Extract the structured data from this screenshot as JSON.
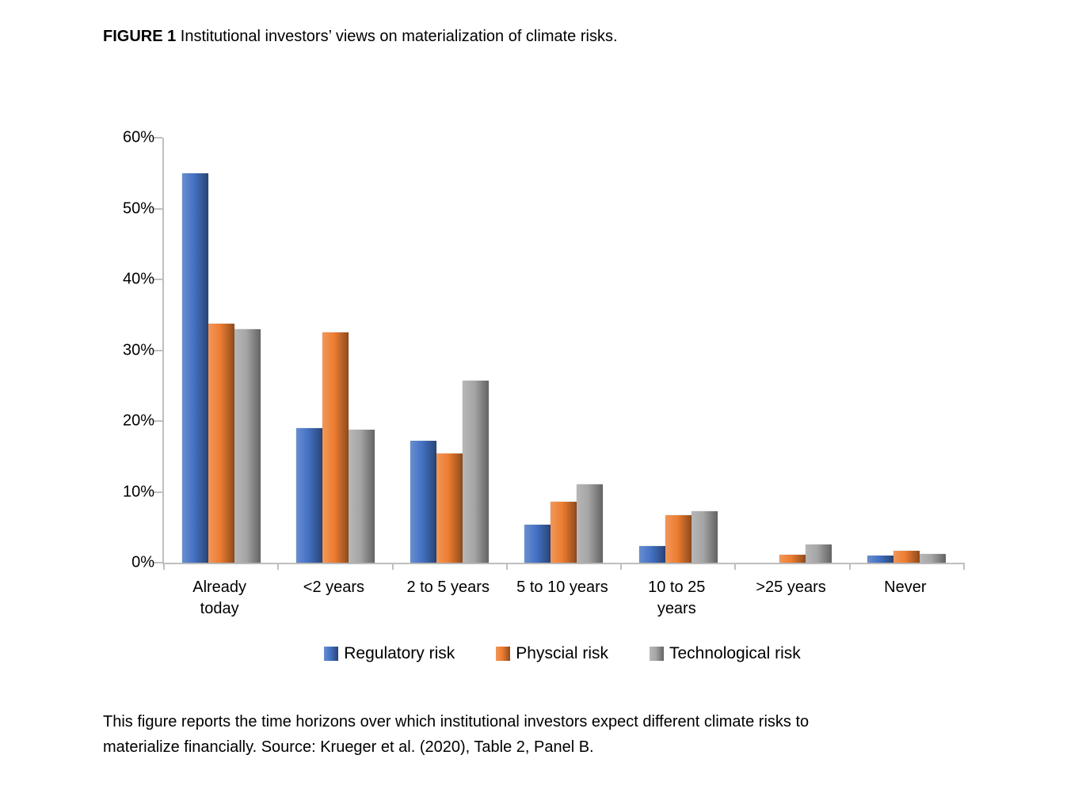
{
  "figure": {
    "label": "FIGURE 1",
    "title_rest": " Institutional investors’ views on materialization of climate risks."
  },
  "chart_data": {
    "type": "bar",
    "title": "Institutional investors’ views on materialization of climate risks",
    "categories": [
      "Already\ntoday",
      "<2 years",
      "2 to 5 years",
      "5 to 10 years",
      "10 to 25\nyears",
      ">25 years",
      "Never"
    ],
    "series": [
      {
        "name": "Regulatory risk",
        "color": "#4472C4",
        "values": [
          55.0,
          19.0,
          17.2,
          5.4,
          2.4,
          0,
          1.0
        ]
      },
      {
        "name": "Physcial risk",
        "color": "#ED7D31",
        "values": [
          33.7,
          32.5,
          15.4,
          8.6,
          6.7,
          1.1,
          1.7
        ]
      },
      {
        "name": "Technological risk",
        "color": "#A5A5A5",
        "values": [
          33.0,
          18.8,
          25.7,
          11.1,
          7.3,
          2.6,
          1.2
        ]
      }
    ],
    "xlabel": "",
    "ylabel": "",
    "ylim": [
      0,
      60
    ],
    "ytick_step": 10,
    "ytick_labels": [
      "0%",
      "10%",
      "20%",
      "30%",
      "40%",
      "50%",
      "60%"
    ],
    "grid": false,
    "legend_position": "bottom",
    "axis_color": "#BFBFBF"
  },
  "caption": {
    "text": "This figure reports the time horizons over which institutional investors expect different climate risks to\nmaterialize financially. Source: Krueger et al. (2020), Table 2, Panel B."
  }
}
